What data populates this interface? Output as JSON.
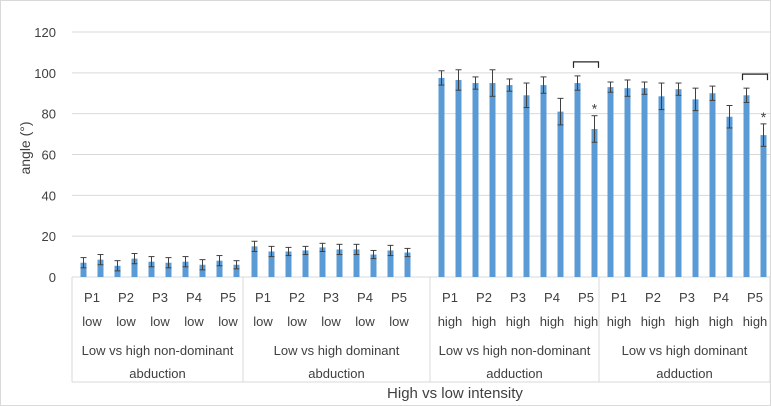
{
  "chart_data": {
    "type": "bar",
    "title": "",
    "xlabel": "High vs low intensity",
    "ylabel": "angle (°)",
    "ylim": [
      0,
      120
    ],
    "yticks": [
      0,
      20,
      40,
      60,
      80,
      100,
      120
    ],
    "grid": true,
    "bar_color": "#5b9bd5",
    "groups": [
      {
        "label": "Low vs high non-dominant abduction",
        "label_lines": [
          "Low vs high non-dominant",
          "abduction"
        ],
        "pairs": [
          {
            "p": "P1",
            "sub": "low",
            "values": [
              7,
              8.5
            ],
            "errors": [
              2.5,
              2.5
            ]
          },
          {
            "p": "P2",
            "sub": "low",
            "values": [
              5.5,
              9
            ],
            "errors": [
              2.5,
              2.5
            ]
          },
          {
            "p": "P3",
            "sub": "low",
            "values": [
              7.5,
              7
            ],
            "errors": [
              2.5,
              2.5
            ]
          },
          {
            "p": "P4",
            "sub": "low",
            "values": [
              7.5,
              6
            ],
            "errors": [
              2.5,
              2.5
            ]
          },
          {
            "p": "P5",
            "sub": "low",
            "values": [
              8,
              6
            ],
            "errors": [
              2.5,
              2
            ]
          }
        ]
      },
      {
        "label": "Low vs high dominant abduction",
        "label_lines": [
          "Low vs high dominant",
          "abduction"
        ],
        "pairs": [
          {
            "p": "P1",
            "sub": "low",
            "values": [
              15,
              12.5
            ],
            "errors": [
              2.5,
              2.5
            ]
          },
          {
            "p": "P2",
            "sub": "low",
            "values": [
              12.5,
              13
            ],
            "errors": [
              2,
              2
            ]
          },
          {
            "p": "P3",
            "sub": "low",
            "values": [
              14.5,
              13.5
            ],
            "errors": [
              2,
              2.5
            ]
          },
          {
            "p": "P4",
            "sub": "low",
            "values": [
              13.5,
              11
            ],
            "errors": [
              2.5,
              2
            ]
          },
          {
            "p": "P5",
            "sub": "low",
            "values": [
              13,
              12
            ],
            "errors": [
              2.5,
              2
            ]
          }
        ]
      },
      {
        "label": "Low vs high non-dominant adduction",
        "label_lines": [
          "Low vs high non-dominant",
          "adduction"
        ],
        "pairs": [
          {
            "p": "P1",
            "sub": "high",
            "values": [
              97.5,
              96.5
            ],
            "errors": [
              3.5,
              5
            ]
          },
          {
            "p": "P2",
            "sub": "high",
            "values": [
              95,
              95
            ],
            "errors": [
              3,
              6.5
            ]
          },
          {
            "p": "P3",
            "sub": "high",
            "values": [
              94,
              89
            ],
            "errors": [
              3,
              6
            ]
          },
          {
            "p": "P4",
            "sub": "high",
            "values": [
              94,
              81
            ],
            "errors": [
              4,
              6.5
            ]
          },
          {
            "p": "P5",
            "sub": "high",
            "values": [
              95,
              72.5
            ],
            "errors": [
              3.5,
              6.5
            ]
          }
        ]
      },
      {
        "label": "Low vs high dominant adduction",
        "label_lines": [
          "Low vs high dominant",
          "adduction"
        ],
        "pairs": [
          {
            "p": "P1",
            "sub": "high",
            "values": [
              93,
              92.5
            ],
            "errors": [
              2.5,
              4
            ]
          },
          {
            "p": "P2",
            "sub": "high",
            "values": [
              92.5,
              88.5
            ],
            "errors": [
              3,
              6.5
            ]
          },
          {
            "p": "P3",
            "sub": "high",
            "values": [
              92,
              87
            ],
            "errors": [
              3,
              5.5
            ]
          },
          {
            "p": "P4",
            "sub": "high",
            "values": [
              90,
              78.5
            ],
            "errors": [
              3.5,
              5.5
            ]
          },
          {
            "p": "P5",
            "sub": "high",
            "values": [
              89,
              69.5
            ],
            "errors": [
              3.5,
              5.5
            ]
          }
        ]
      }
    ],
    "annotations": [
      {
        "text": "*",
        "group": 2,
        "pair": 4
      },
      {
        "text": "*",
        "group": 3,
        "pair": 4
      }
    ]
  }
}
